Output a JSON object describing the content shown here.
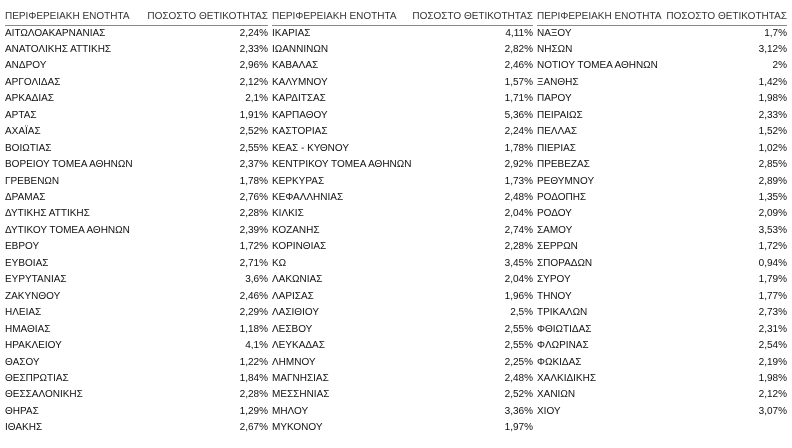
{
  "table": {
    "groups": [
      {
        "headers": [
          "ΠΕΡΙΦΕΡΕΙΑΚΗ ΕΝΟΤΗΤΑ",
          "ΠΟΣΟΣΤΟ ΘΕΤΙΚΟΤΗΤΑΣ"
        ],
        "rows": [
          [
            "ΑΙΤΩΛΟΑΚΑΡΝΑΝΙΑΣ",
            "2,24%"
          ],
          [
            "ΑΝΑΤΟΛΙΚΗΣ ΑΤΤΙΚΗΣ",
            "2,33%"
          ],
          [
            "ΑΝΔΡΟΥ",
            "2,96%"
          ],
          [
            "ΑΡΓΟΛΙΔΑΣ",
            "2,12%"
          ],
          [
            "ΑΡΚΑΔΙΑΣ",
            "2,1%"
          ],
          [
            "ΑΡΤΑΣ",
            "1,91%"
          ],
          [
            "ΑΧΑΪΑΣ",
            "2,52%"
          ],
          [
            "ΒΟΙΩΤΙΑΣ",
            "2,55%"
          ],
          [
            "ΒΟΡΕΙΟΥ ΤΟΜΕΑ ΑΘΗΝΩΝ",
            "2,37%"
          ],
          [
            "ΓΡΕΒΕΝΩΝ",
            "1,78%"
          ],
          [
            "ΔΡΑΜΑΣ",
            "2,76%"
          ],
          [
            "ΔΥΤΙΚΗΣ ΑΤΤΙΚΗΣ",
            "2,28%"
          ],
          [
            "ΔΥΤΙΚΟΥ ΤΟΜΕΑ ΑΘΗΝΩΝ",
            "2,39%"
          ],
          [
            "ΕΒΡΟΥ",
            "1,72%"
          ],
          [
            "ΕΥΒΟΙΑΣ",
            "2,71%"
          ],
          [
            "ΕΥΡΥΤΑΝΙΑΣ",
            "3,6%"
          ],
          [
            "ΖΑΚΥΝΘΟΥ",
            "2,46%"
          ],
          [
            "ΗΛΕΙΑΣ",
            "2,29%"
          ],
          [
            "ΗΜΑΘΙΑΣ",
            "1,18%"
          ],
          [
            "ΗΡΑΚΛΕΙΟΥ",
            "4,1%"
          ],
          [
            "ΘΑΣΟΥ",
            "1,22%"
          ],
          [
            "ΘΕΣΠΡΩΤΙΑΣ",
            "1,84%"
          ],
          [
            "ΘΕΣΣΑΛΟΝΙΚΗΣ",
            "2,28%"
          ],
          [
            "ΘΗΡΑΣ",
            "1,29%"
          ],
          [
            "ΙΘΑΚΗΣ",
            "2,67%"
          ]
        ]
      },
      {
        "headers": [
          "ΠΕΡΙΦΕΡΕΙΑΚΗ ΕΝΟΤΗΤΑ",
          "ΠΟΣΟΣΤΟ ΘΕΤΙΚΟΤΗΤΑΣ"
        ],
        "rows": [
          [
            "ΙΚΑΡΙΑΣ",
            "4,11%"
          ],
          [
            "ΙΩΑΝΝΙΝΩΝ",
            "2,82%"
          ],
          [
            "ΚΑΒΑΛΑΣ",
            "2,46%"
          ],
          [
            "ΚΑΛΥΜΝΟΥ",
            "1,57%"
          ],
          [
            "ΚΑΡΔΙΤΣΑΣ",
            "1,71%"
          ],
          [
            "ΚΑΡΠΑΘΟΥ",
            "5,36%"
          ],
          [
            "ΚΑΣΤΟΡΙΑΣ",
            "2,24%"
          ],
          [
            "ΚΕΑΣ - ΚΥΘΝΟΥ",
            "1,78%"
          ],
          [
            "ΚΕΝΤΡΙΚΟΥ ΤΟΜΕΑ ΑΘΗΝΩΝ",
            "2,92%"
          ],
          [
            "ΚΕΡΚΥΡΑΣ",
            "1,73%"
          ],
          [
            "ΚΕΦΑΛΛΗΝΙΑΣ",
            "2,48%"
          ],
          [
            "ΚΙΛΚΙΣ",
            "2,04%"
          ],
          [
            "ΚΟΖΑΝΗΣ",
            "2,74%"
          ],
          [
            "ΚΟΡΙΝΘΙΑΣ",
            "2,28%"
          ],
          [
            "ΚΩ",
            "3,45%"
          ],
          [
            "ΛΑΚΩΝΙΑΣ",
            "2,04%"
          ],
          [
            "ΛΑΡΙΣΑΣ",
            "1,96%"
          ],
          [
            "ΛΑΣΙΘΙΟΥ",
            "2,5%"
          ],
          [
            "ΛΕΣΒΟΥ",
            "2,55%"
          ],
          [
            "ΛΕΥΚΑΔΑΣ",
            "2,55%"
          ],
          [
            "ΛΗΜΝΟΥ",
            "2,25%"
          ],
          [
            "ΜΑΓΝΗΣΙΑΣ",
            "2,48%"
          ],
          [
            "ΜΕΣΣΗΝΙΑΣ",
            "2,52%"
          ],
          [
            "ΜΗΛΟΥ",
            "3,36%"
          ],
          [
            "ΜΥΚΟΝΟΥ",
            "1,97%"
          ]
        ]
      },
      {
        "headers": [
          "ΠΕΡΙΦΕΡΕΙΑΚΗ ΕΝΟΤΗΤΑ",
          "ΠΟΣΟΣΤΟ ΘΕΤΙΚΟΤΗΤΑΣ"
        ],
        "rows": [
          [
            "ΝΑΞΟΥ",
            "1,7%"
          ],
          [
            "ΝΗΣΩΝ",
            "3,12%"
          ],
          [
            "ΝΟΤΙΟΥ ΤΟΜΕΑ ΑΘΗΝΩΝ",
            "2%"
          ],
          [
            "ΞΑΝΘΗΣ",
            "1,42%"
          ],
          [
            "ΠΑΡΟΥ",
            "1,98%"
          ],
          [
            "ΠΕΙΡΑΙΩΣ",
            "2,33%"
          ],
          [
            "ΠΕΛΛΑΣ",
            "1,52%"
          ],
          [
            "ΠΙΕΡΙΑΣ",
            "1,02%"
          ],
          [
            "ΠΡΕΒΕΖΑΣ",
            "2,85%"
          ],
          [
            "ΡΕΘΥΜΝΟΥ",
            "2,89%"
          ],
          [
            "ΡΟΔΟΠΗΣ",
            "1,35%"
          ],
          [
            "ΡΟΔΟΥ",
            "2,09%"
          ],
          [
            "ΣΑΜΟΥ",
            "3,53%"
          ],
          [
            "ΣΕΡΡΩΝ",
            "1,72%"
          ],
          [
            "ΣΠΟΡΑΔΩΝ",
            "0,94%"
          ],
          [
            "ΣΥΡΟΥ",
            "1,79%"
          ],
          [
            "ΤΗΝΟΥ",
            "1,77%"
          ],
          [
            "ΤΡΙΚΑΛΩΝ",
            "2,73%"
          ],
          [
            "ΦΘΙΩΤΙΔΑΣ",
            "2,31%"
          ],
          [
            "ΦΛΩΡΙΝΑΣ",
            "2,54%"
          ],
          [
            "ΦΩΚΙΔΑΣ",
            "2,19%"
          ],
          [
            "ΧΑΛΚΙΔΙΚΗΣ",
            "1,98%"
          ],
          [
            "ΧΑΝΙΩΝ",
            "2,12%"
          ],
          [
            "ΧΙΟΥ",
            "3,07%"
          ]
        ]
      }
    ]
  }
}
